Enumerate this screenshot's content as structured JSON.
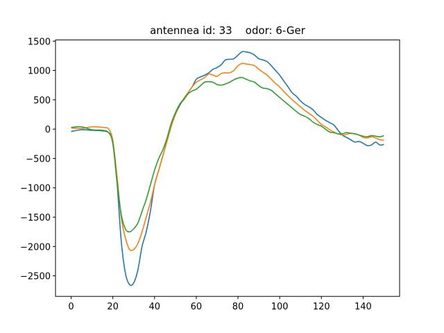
{
  "chart_data": {
    "type": "line",
    "title": "antennea id: 33    odor: 6-Ger",
    "xlabel": "",
    "ylabel": "",
    "xlim": [
      -7.5,
      157.5
    ],
    "ylim": [
      -2850,
      1520
    ],
    "xticks": [
      0,
      20,
      40,
      60,
      80,
      100,
      120,
      140
    ],
    "yticks": [
      -2500,
      -2000,
      -1500,
      -1000,
      -500,
      0,
      500,
      1000,
      1500
    ],
    "grid": false,
    "legend": "none",
    "series": [
      {
        "color": "#1f77b4",
        "points": [
          [
            0,
            -40
          ],
          [
            5,
            -10
          ],
          [
            10,
            -20
          ],
          [
            15,
            -30
          ],
          [
            18,
            -60
          ],
          [
            20,
            -200
          ],
          [
            22,
            -900
          ],
          [
            24,
            -1900
          ],
          [
            26,
            -2450
          ],
          [
            28,
            -2650
          ],
          [
            30,
            -2620
          ],
          [
            32,
            -2400
          ],
          [
            34,
            -2000
          ],
          [
            36,
            -1750
          ],
          [
            38,
            -1400
          ],
          [
            40,
            -950
          ],
          [
            42,
            -700
          ],
          [
            44,
            -450
          ],
          [
            46,
            -200
          ],
          [
            48,
            50
          ],
          [
            50,
            250
          ],
          [
            52,
            400
          ],
          [
            54,
            520
          ],
          [
            56,
            620
          ],
          [
            58,
            720
          ],
          [
            60,
            850
          ],
          [
            62,
            890
          ],
          [
            64,
            920
          ],
          [
            66,
            960
          ],
          [
            68,
            1020
          ],
          [
            70,
            1050
          ],
          [
            72,
            1100
          ],
          [
            74,
            1180
          ],
          [
            76,
            1190
          ],
          [
            78,
            1200
          ],
          [
            80,
            1260
          ],
          [
            82,
            1320
          ],
          [
            84,
            1315
          ],
          [
            86,
            1300
          ],
          [
            88,
            1260
          ],
          [
            90,
            1200
          ],
          [
            92,
            1180
          ],
          [
            94,
            1150
          ],
          [
            96,
            1080
          ],
          [
            98,
            1000
          ],
          [
            100,
            920
          ],
          [
            102,
            820
          ],
          [
            104,
            720
          ],
          [
            106,
            620
          ],
          [
            108,
            560
          ],
          [
            110,
            480
          ],
          [
            112,
            420
          ],
          [
            114,
            380
          ],
          [
            116,
            330
          ],
          [
            118,
            250
          ],
          [
            120,
            200
          ],
          [
            122,
            150
          ],
          [
            124,
            110
          ],
          [
            126,
            70
          ],
          [
            128,
            -20
          ],
          [
            130,
            -100
          ],
          [
            132,
            -140
          ],
          [
            134,
            -180
          ],
          [
            136,
            -220
          ],
          [
            138,
            -210
          ],
          [
            140,
            -240
          ],
          [
            142,
            -280
          ],
          [
            144,
            -270
          ],
          [
            146,
            -220
          ],
          [
            148,
            -270
          ],
          [
            150,
            -260
          ]
        ]
      },
      {
        "color": "#ff7f0e",
        "points": [
          [
            0,
            20
          ],
          [
            5,
            10
          ],
          [
            10,
            40
          ],
          [
            15,
            30
          ],
          [
            18,
            0
          ],
          [
            20,
            -200
          ],
          [
            22,
            -800
          ],
          [
            24,
            -1500
          ],
          [
            26,
            -1850
          ],
          [
            28,
            -2050
          ],
          [
            30,
            -2050
          ],
          [
            32,
            -1950
          ],
          [
            34,
            -1750
          ],
          [
            36,
            -1500
          ],
          [
            38,
            -1250
          ],
          [
            40,
            -950
          ],
          [
            42,
            -700
          ],
          [
            44,
            -450
          ],
          [
            46,
            -200
          ],
          [
            48,
            50
          ],
          [
            50,
            250
          ],
          [
            52,
            420
          ],
          [
            54,
            520
          ],
          [
            56,
            620
          ],
          [
            58,
            720
          ],
          [
            60,
            800
          ],
          [
            62,
            840
          ],
          [
            64,
            880
          ],
          [
            66,
            940
          ],
          [
            68,
            920
          ],
          [
            70,
            900
          ],
          [
            72,
            950
          ],
          [
            74,
            960
          ],
          [
            76,
            960
          ],
          [
            78,
            1000
          ],
          [
            80,
            1080
          ],
          [
            82,
            1120
          ],
          [
            84,
            1110
          ],
          [
            86,
            1100
          ],
          [
            88,
            1080
          ],
          [
            90,
            1020
          ],
          [
            92,
            970
          ],
          [
            94,
            920
          ],
          [
            96,
            850
          ],
          [
            98,
            780
          ],
          [
            100,
            720
          ],
          [
            102,
            640
          ],
          [
            104,
            570
          ],
          [
            106,
            500
          ],
          [
            108,
            440
          ],
          [
            110,
            380
          ],
          [
            112,
            320
          ],
          [
            114,
            270
          ],
          [
            116,
            220
          ],
          [
            118,
            150
          ],
          [
            120,
            80
          ],
          [
            122,
            40
          ],
          [
            124,
            -10
          ],
          [
            126,
            -50
          ],
          [
            128,
            -80
          ],
          [
            130,
            -100
          ],
          [
            132,
            -90
          ],
          [
            134,
            -70
          ],
          [
            136,
            -80
          ],
          [
            138,
            -100
          ],
          [
            140,
            -140
          ],
          [
            142,
            -150
          ],
          [
            144,
            -130
          ],
          [
            146,
            -150
          ],
          [
            148,
            -180
          ],
          [
            150,
            -190
          ]
        ]
      },
      {
        "color": "#2ca02c",
        "points": [
          [
            0,
            30
          ],
          [
            5,
            40
          ],
          [
            10,
            -10
          ],
          [
            15,
            -20
          ],
          [
            18,
            -60
          ],
          [
            20,
            -250
          ],
          [
            22,
            -900
          ],
          [
            24,
            -1450
          ],
          [
            26,
            -1700
          ],
          [
            28,
            -1750
          ],
          [
            30,
            -1700
          ],
          [
            32,
            -1600
          ],
          [
            34,
            -1400
          ],
          [
            36,
            -1200
          ],
          [
            38,
            -950
          ],
          [
            40,
            -700
          ],
          [
            42,
            -500
          ],
          [
            44,
            -350
          ],
          [
            46,
            -150
          ],
          [
            48,
            100
          ],
          [
            50,
            280
          ],
          [
            52,
            420
          ],
          [
            54,
            500
          ],
          [
            56,
            600
          ],
          [
            58,
            650
          ],
          [
            60,
            680
          ],
          [
            62,
            740
          ],
          [
            64,
            800
          ],
          [
            66,
            810
          ],
          [
            68,
            800
          ],
          [
            70,
            760
          ],
          [
            72,
            750
          ],
          [
            74,
            770
          ],
          [
            76,
            800
          ],
          [
            78,
            840
          ],
          [
            80,
            870
          ],
          [
            82,
            880
          ],
          [
            84,
            850
          ],
          [
            86,
            820
          ],
          [
            88,
            800
          ],
          [
            90,
            740
          ],
          [
            92,
            700
          ],
          [
            94,
            690
          ],
          [
            96,
            660
          ],
          [
            98,
            600
          ],
          [
            100,
            540
          ],
          [
            102,
            480
          ],
          [
            104,
            420
          ],
          [
            106,
            360
          ],
          [
            108,
            300
          ],
          [
            110,
            250
          ],
          [
            112,
            220
          ],
          [
            114,
            180
          ],
          [
            116,
            120
          ],
          [
            118,
            80
          ],
          [
            120,
            50
          ],
          [
            122,
            0
          ],
          [
            124,
            -50
          ],
          [
            126,
            -60
          ],
          [
            128,
            -80
          ],
          [
            130,
            -80
          ],
          [
            132,
            -60
          ],
          [
            134,
            -70
          ],
          [
            136,
            -80
          ],
          [
            138,
            -100
          ],
          [
            140,
            -120
          ],
          [
            142,
            -130
          ],
          [
            144,
            -110
          ],
          [
            146,
            -120
          ],
          [
            148,
            -130
          ],
          [
            150,
            -110
          ]
        ]
      }
    ]
  }
}
